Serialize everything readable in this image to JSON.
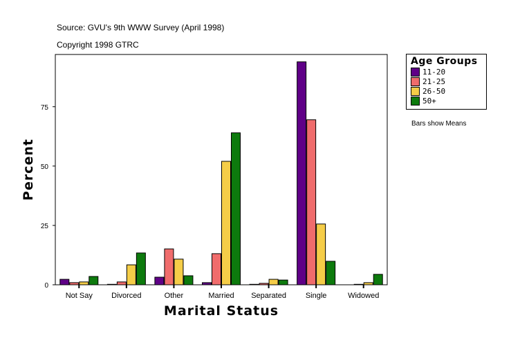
{
  "header": {
    "source": "Source: GVU's 9th WWW Survey (April 1998)",
    "copyright": "Copyright 1998 GTRC"
  },
  "note": "Bars show Means",
  "chart_data": {
    "type": "bar",
    "xlabel": "Marital Status",
    "ylabel": "Percent",
    "ylim": [
      0,
      97
    ],
    "yticks": [
      0,
      25,
      50,
      75
    ],
    "grid": false,
    "legend_title": "Age Groups",
    "legend_position": "right",
    "categories": [
      "Not Say",
      "Divorced",
      "Other",
      "Married",
      "Separated",
      "Single",
      "Widowed"
    ],
    "series": [
      {
        "name": "11-20",
        "color": "#5f0087",
        "values": [
          2.3,
          0.2,
          3.2,
          0.9,
          0.2,
          93.9,
          0.0
        ]
      },
      {
        "name": "21-25",
        "color": "#f06c6c",
        "values": [
          0.9,
          1.2,
          15.1,
          13.1,
          0.6,
          69.5,
          0.2
        ]
      },
      {
        "name": "26-50",
        "color": "#f5cd48",
        "values": [
          1.2,
          8.4,
          10.8,
          52.0,
          2.3,
          25.6,
          0.9
        ]
      },
      {
        "name": "50+",
        "color": "#0d7a0d",
        "values": [
          3.5,
          13.4,
          3.8,
          64.0,
          2.0,
          9.9,
          4.4
        ]
      }
    ]
  }
}
